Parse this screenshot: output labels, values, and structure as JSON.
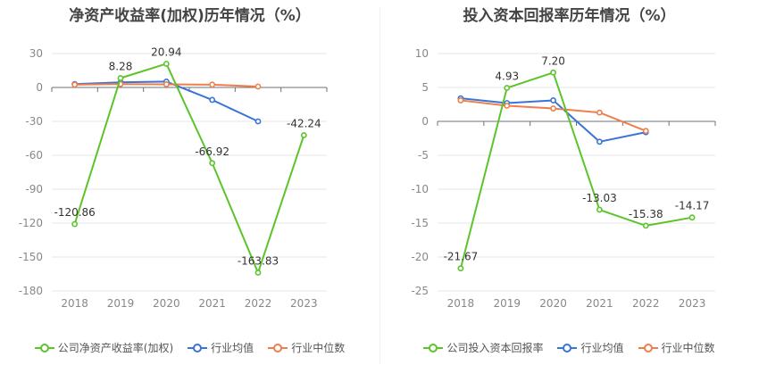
{
  "chart_data": [
    {
      "type": "line",
      "title": "净资产收益率(加权)历年情况（%）",
      "categories": [
        "2018",
        "2019",
        "2020",
        "2021",
        "2022",
        "2023"
      ],
      "ylim": [
        -180,
        30
      ],
      "yticks": [
        30,
        0,
        -30,
        -60,
        -90,
        -120,
        -150,
        -180
      ],
      "grid": true,
      "legend_position": "bottom",
      "series": [
        {
          "name": "公司净资产收益率(加权)",
          "color": "#5cc42a",
          "values": [
            -120.86,
            8.28,
            20.94,
            -66.92,
            -163.83,
            -42.24
          ],
          "labels": [
            "-120.86",
            "8.28",
            "20.94",
            "-66.92",
            "-163.83",
            "-42.24"
          ]
        },
        {
          "name": "行业均值",
          "color": "#3a74d5",
          "values": [
            3.0,
            4.5,
            5.2,
            -11.0,
            -30.0,
            null
          ]
        },
        {
          "name": "行业中位数",
          "color": "#ee7f4c",
          "values": [
            2.5,
            3.0,
            2.8,
            2.5,
            0.8,
            null
          ]
        }
      ]
    },
    {
      "type": "line",
      "title": "投入资本回报率历年情况（%）",
      "categories": [
        "2018",
        "2019",
        "2020",
        "2021",
        "2022",
        "2023"
      ],
      "ylim": [
        -25,
        10
      ],
      "yticks": [
        10,
        5,
        0,
        -5,
        -10,
        -15,
        -20,
        -25
      ],
      "grid": true,
      "legend_position": "bottom",
      "series": [
        {
          "name": "公司投入资本回报率",
          "color": "#5cc42a",
          "values": [
            -21.67,
            4.93,
            7.2,
            -13.03,
            -15.38,
            -14.17
          ],
          "labels": [
            "-21.67",
            "4.93",
            "7.20",
            "-13.03",
            "-15.38",
            "-14.17"
          ]
        },
        {
          "name": "行业均值",
          "color": "#3a74d5",
          "values": [
            3.4,
            2.7,
            3.1,
            -3.0,
            -1.6,
            null
          ]
        },
        {
          "name": "行业中位数",
          "color": "#ee7f4c",
          "values": [
            3.1,
            2.3,
            1.9,
            1.3,
            -1.4,
            null
          ]
        }
      ]
    }
  ]
}
